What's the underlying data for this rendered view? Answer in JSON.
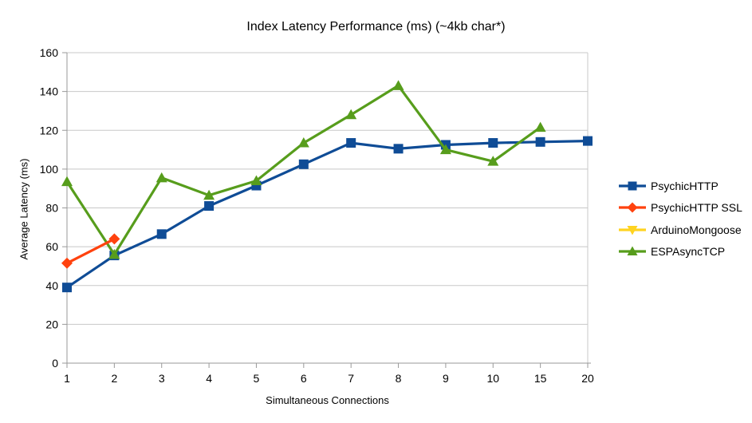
{
  "chart_data": {
    "type": "line",
    "title": "Index Latency Performance (ms) (~4kb char*)",
    "xlabel": "Simultaneous Connections",
    "ylabel": "Average Latency (ms)",
    "categories": [
      "1",
      "2",
      "3",
      "4",
      "5",
      "6",
      "7",
      "8",
      "9",
      "10",
      "15",
      "20"
    ],
    "ylim": [
      0,
      160
    ],
    "y_ticks": [
      0,
      20,
      40,
      60,
      80,
      100,
      120,
      140,
      160
    ],
    "grid": "horizontal",
    "legend_position": "right",
    "series": [
      {
        "name": "PsychicHTTP",
        "color": "#0F4C96",
        "marker": "square",
        "values": [
          39,
          55.5,
          66.5,
          81,
          91.5,
          102.5,
          113.5,
          110.5,
          112.5,
          113.5,
          114,
          114.5
        ]
      },
      {
        "name": "PsychicHTTP SSL",
        "color": "#FF420E",
        "marker": "diamond",
        "values": [
          51.5,
          64,
          null,
          null,
          null,
          null,
          null,
          null,
          null,
          null,
          null,
          null
        ]
      },
      {
        "name": "ArduinoMongoose",
        "color": "#FFD320",
        "marker": "triangle-down",
        "values": [
          null,
          null,
          null,
          null,
          null,
          null,
          null,
          null,
          null,
          null,
          null,
          null
        ]
      },
      {
        "name": "ESPAsyncTCP",
        "color": "#579D1C",
        "marker": "triangle-up",
        "values": [
          93.5,
          56,
          95.5,
          86.5,
          94,
          113.5,
          128,
          143,
          110,
          104,
          121.5,
          null
        ]
      }
    ]
  },
  "colors": {
    "background": "#FFFFFF",
    "grid": "#C8C8C8",
    "axis": "#999999",
    "text": "#000000"
  }
}
